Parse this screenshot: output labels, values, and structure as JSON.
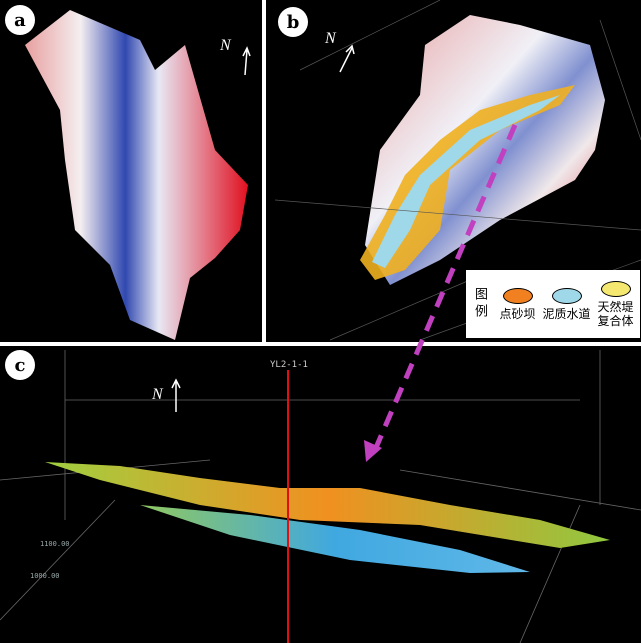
{
  "panels": [
    {
      "label": "a",
      "north": "N"
    },
    {
      "label": "b",
      "north": "N",
      "legend": {
        "title": "图例",
        "items": [
          "点砂坝",
          "泥质水道",
          "天然堤复合体"
        ]
      }
    },
    {
      "label": "c",
      "north": "N",
      "well": "YL2-1-1",
      "axis_labels": [
        "1100.00",
        "1000.00"
      ]
    }
  ]
}
